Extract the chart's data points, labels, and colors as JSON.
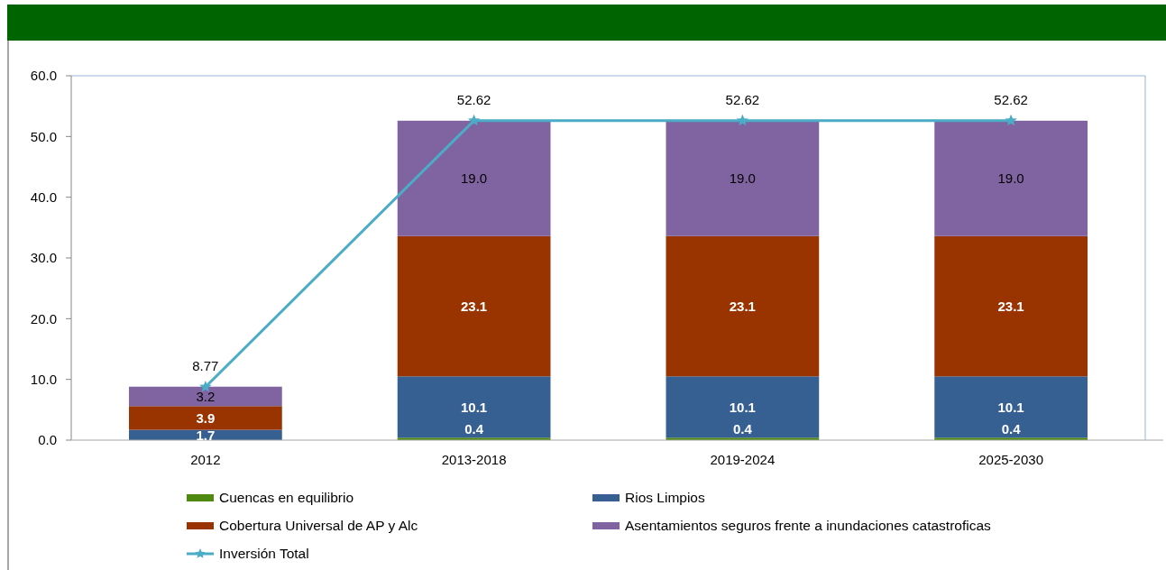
{
  "chart_data": {
    "type": "bar",
    "stacked": true,
    "categories": [
      "2012",
      "2013-2018",
      "2019-2024",
      "2025-2030"
    ],
    "series": [
      {
        "name": "Cuencas en equilibrio",
        "color": "#4d8a0f",
        "values": [
          0.0,
          0.4,
          0.4,
          0.4
        ],
        "value_labels": [
          null,
          "0.4",
          "0.4",
          "0.4"
        ]
      },
      {
        "name": "Rios Limpios",
        "color": "#376092",
        "values": [
          1.7,
          10.1,
          10.1,
          10.1
        ],
        "value_labels": [
          "1.7",
          "10.1",
          "10.1",
          "10.1"
        ]
      },
      {
        "name": "Cobertura Universal de AP y Alc",
        "color": "#993300",
        "values": [
          3.9,
          23.1,
          23.1,
          23.1
        ],
        "value_labels": [
          "3.9",
          "23.1",
          "23.1",
          "23.1"
        ]
      },
      {
        "name": "Asentamientos seguros frente a inundaciones catastroficas",
        "color": "#8064a2",
        "values": [
          3.2,
          19.0,
          19.0,
          19.0
        ],
        "value_labels": [
          "3.2",
          "19.0",
          "19.0",
          "19.0"
        ]
      },
      {
        "name": "Inversión Total",
        "type": "line",
        "color": "#4bacc6",
        "marker": "star",
        "values": [
          8.77,
          52.62,
          52.62,
          52.62
        ],
        "value_labels": [
          "8.77",
          "52.62",
          "52.62",
          "52.62"
        ]
      }
    ],
    "ylim": [
      0,
      60
    ],
    "yticks": [
      {
        "value": 0,
        "label": "0.0"
      },
      {
        "value": 10,
        "label": "10.0"
      },
      {
        "value": 20,
        "label": "20.0"
      },
      {
        "value": 30,
        "label": "30.0"
      },
      {
        "value": 40,
        "label": "40.0"
      },
      {
        "value": 50,
        "label": "50.0"
      },
      {
        "value": 60,
        "label": "60.0"
      }
    ],
    "legend": "bottom"
  }
}
